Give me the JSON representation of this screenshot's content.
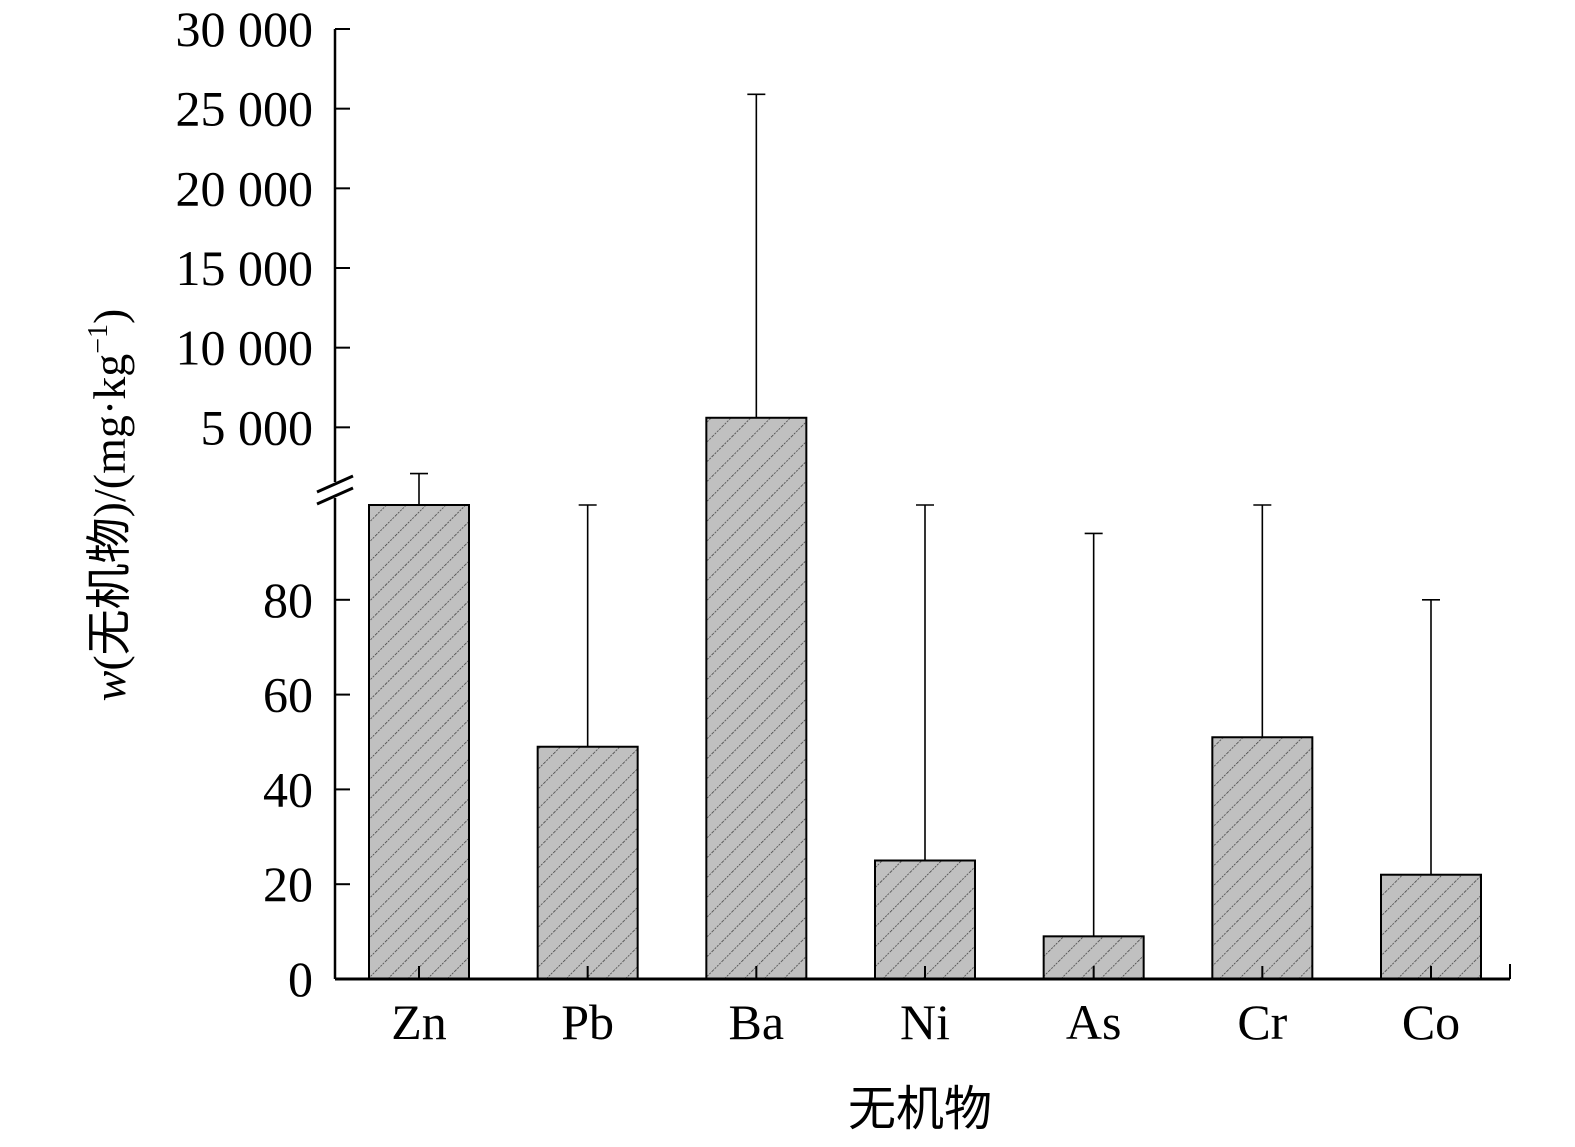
{
  "chart_data": {
    "type": "bar",
    "xlabel": "无机物",
    "ylabel": {
      "var": "w",
      "text": "(无机物)/(mg·kg",
      "sup": "−1",
      "close": ")"
    },
    "categories": [
      "Zn",
      "Pb",
      "Ba",
      "Ni",
      "As",
      "Cr",
      "Co"
    ],
    "values": [
      100,
      49,
      5600,
      25,
      9,
      51,
      22
    ],
    "error_upper": [
      2100,
      100,
      25900,
      100,
      94,
      100,
      80
    ],
    "y_axis_break": true,
    "lower_segment": {
      "ylim": [
        0,
        100
      ],
      "ticks": [
        0,
        20,
        40,
        60,
        80
      ],
      "tick_labels": [
        "0",
        "20",
        "40",
        "60",
        "80"
      ]
    },
    "upper_segment": {
      "ylim": [
        0,
        30000
      ],
      "ticks": [
        5000,
        10000,
        15000,
        20000,
        25000,
        30000
      ],
      "tick_labels": [
        "5 000",
        "10 000",
        "15 000",
        "20 000",
        "25 000",
        "30 000"
      ]
    },
    "bar_fill": "#c0c0c0",
    "bar_hatch": "diagonal",
    "grid": false,
    "legend": "none"
  }
}
